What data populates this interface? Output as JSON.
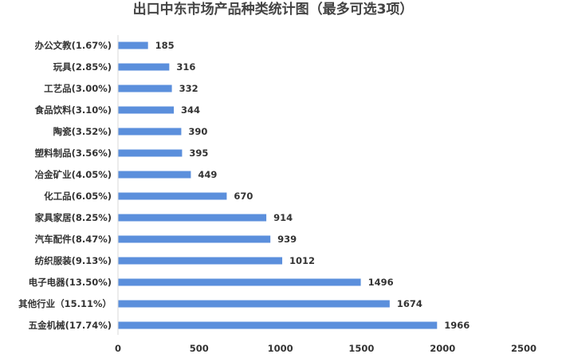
{
  "chart_data": {
    "type": "bar",
    "orientation": "horizontal",
    "title": "出口中东市场产品种类统计图（最多可选3项）",
    "categories": [
      "办公文教(1.67%)",
      "玩具(2.85%)",
      "工艺品(3.00%)",
      "食品饮料(3.10%)",
      "陶瓷(3.52%)",
      "塑料制品(3.56%)",
      "冶金矿业(4.05%)",
      "化工品(6.05%)",
      "家具家居(8.25%)",
      "汽车配件(8.47%)",
      "纺织服装(9.13%)",
      "电子电器(13.50%)",
      "其他行业（15.11%）",
      "五金机械(17.74%)"
    ],
    "values": [
      185,
      316,
      332,
      344,
      390,
      395,
      449,
      670,
      914,
      939,
      1012,
      1496,
      1674,
      1966
    ],
    "xlim": [
      0,
      2500
    ],
    "xticks": [
      0,
      500,
      1000,
      1500,
      2000,
      2500
    ],
    "data_labels": true,
    "grid": false,
    "legend": "none",
    "bar_color": "#5b8fdc"
  }
}
